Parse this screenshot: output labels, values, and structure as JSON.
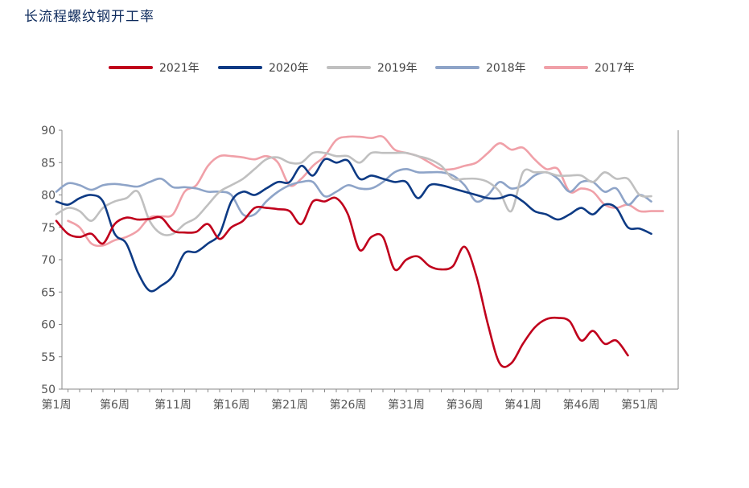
{
  "title": "长流程螺纹钢开工率",
  "chart_data": {
    "type": "line",
    "title": "长流程螺纹钢开工率",
    "xlabel": "",
    "ylabel": "",
    "ylim": [
      50,
      90
    ],
    "yticks": [
      50,
      55,
      60,
      65,
      70,
      75,
      80,
      85,
      90
    ],
    "xlim": [
      1,
      53
    ],
    "xticks": [
      1,
      6,
      11,
      16,
      21,
      26,
      31,
      36,
      41,
      46,
      51
    ],
    "xtick_labels": [
      "第1周",
      "第6周",
      "第11周",
      "第16周",
      "第21周",
      "第26周",
      "第31周",
      "第36周",
      "第41周",
      "第46周",
      "第51周"
    ],
    "grid": false,
    "legend_position": "top",
    "series": [
      {
        "name": "2021年",
        "color": "#c0001c",
        "x": [
          1,
          2,
          3,
          4,
          5,
          6,
          7,
          8,
          9,
          10,
          11,
          12,
          13,
          14,
          15,
          16,
          17,
          18,
          19,
          20,
          21,
          22,
          23,
          24,
          25,
          26,
          27,
          28,
          29,
          30,
          31,
          32,
          33,
          34,
          35,
          36,
          37,
          38,
          39,
          40,
          41,
          42,
          43,
          44,
          45,
          46,
          47,
          48,
          49,
          50
        ],
        "y": [
          76,
          74,
          73.5,
          74,
          72.5,
          75.5,
          76.5,
          76.2,
          76.3,
          76.5,
          74.5,
          74.2,
          74.3,
          75.5,
          73.2,
          75,
          76,
          78,
          78,
          77.8,
          77.5,
          75.5,
          79,
          79,
          79.5,
          77,
          71.5,
          73.5,
          73.5,
          68.5,
          70,
          70.5,
          69,
          68.5,
          69,
          72,
          67.5,
          60,
          54,
          54,
          57,
          59.5,
          60.8,
          61,
          60.5,
          57.5,
          59,
          57,
          57.5,
          55.2
        ]
      },
      {
        "name": "2020年",
        "color": "#0d3a84",
        "x": [
          1,
          2,
          3,
          4,
          5,
          6,
          7,
          8,
          9,
          10,
          11,
          12,
          13,
          14,
          15,
          16,
          17,
          18,
          19,
          20,
          21,
          22,
          23,
          24,
          25,
          26,
          27,
          28,
          29,
          30,
          31,
          32,
          33,
          34,
          35,
          36,
          37,
          38,
          39,
          40,
          41,
          42,
          43,
          44,
          45,
          46,
          47,
          48,
          49,
          50,
          51,
          52
        ],
        "y": [
          79,
          78.5,
          79.5,
          80,
          79,
          74,
          72.5,
          68,
          65.2,
          66,
          67.5,
          71,
          71.2,
          72.5,
          74,
          79,
          80.5,
          80,
          81,
          82,
          82,
          84.5,
          83,
          85.5,
          85,
          85.3,
          82.5,
          83,
          82.5,
          82,
          82,
          79.5,
          81.5,
          81.5,
          81,
          80.5,
          80,
          79.5,
          79.5,
          80,
          79,
          77.5,
          77,
          76.2,
          77,
          78,
          77,
          78.5,
          78,
          75,
          74.8,
          74
        ]
      },
      {
        "name": "2019年",
        "color": "#c0c0c0",
        "x": [
          1,
          2,
          3,
          4,
          5,
          6,
          7,
          8,
          9,
          10,
          11,
          12,
          13,
          14,
          15,
          16,
          17,
          18,
          19,
          20,
          21,
          22,
          23,
          24,
          25,
          26,
          27,
          28,
          29,
          30,
          31,
          32,
          33,
          34,
          35,
          36,
          37,
          38,
          39,
          40,
          41,
          42,
          43,
          44,
          45,
          46,
          47,
          48,
          49,
          50,
          51,
          52
        ],
        "y": [
          77,
          78,
          77.5,
          76,
          78,
          79,
          79.5,
          80.5,
          76,
          74,
          74,
          75.5,
          76.5,
          78.5,
          80.5,
          81.5,
          82.5,
          84,
          85.5,
          85.8,
          85,
          85,
          86.5,
          86.5,
          86,
          86,
          85,
          86.5,
          86.5,
          86.5,
          86.5,
          86,
          85.5,
          84.5,
          82.5,
          82.5,
          82.5,
          82,
          80.5,
          77.5,
          83.5,
          83.5,
          83.5,
          83,
          83,
          83,
          82,
          83.5,
          82.5,
          82.5,
          80,
          79.8
        ]
      },
      {
        "name": "2018年",
        "color": "#8ea4c8",
        "x": [
          1,
          2,
          3,
          4,
          5,
          6,
          7,
          8,
          9,
          10,
          11,
          12,
          13,
          14,
          15,
          16,
          17,
          18,
          19,
          20,
          21,
          22,
          23,
          24,
          25,
          26,
          27,
          28,
          29,
          30,
          31,
          32,
          33,
          34,
          35,
          36,
          37,
          38,
          39,
          40,
          41,
          42,
          43,
          44,
          45,
          46,
          47,
          48,
          49,
          50,
          51,
          52
        ],
        "y": [
          80.5,
          81.8,
          81.5,
          80.8,
          81.5,
          81.7,
          81.5,
          81.3,
          82,
          82.5,
          81.2,
          81.2,
          81,
          80.5,
          80.5,
          80,
          77,
          77,
          79,
          80.5,
          81.5,
          82,
          82,
          79.8,
          80.5,
          81.5,
          81,
          81,
          82,
          83.5,
          84,
          83.5,
          83.5,
          83.5,
          83,
          81.5,
          79,
          80,
          82,
          81,
          81.5,
          83,
          83.5,
          82.5,
          80.5,
          82,
          82,
          80.5,
          81,
          78.5,
          80,
          79
        ]
      },
      {
        "name": "2017年",
        "color": "#f0a0a8",
        "x": [
          2,
          3,
          4,
          5,
          6,
          7,
          8,
          9,
          10,
          11,
          12,
          13,
          14,
          15,
          16,
          17,
          18,
          19,
          20,
          21,
          22,
          23,
          24,
          25,
          26,
          27,
          28,
          29,
          30,
          31,
          32,
          33,
          34,
          35,
          36,
          37,
          38,
          39,
          40,
          41,
          42,
          43,
          44,
          45,
          46,
          47,
          48,
          49,
          50,
          51,
          52,
          53
        ],
        "y": [
          76,
          75,
          72.5,
          72.2,
          73,
          73.5,
          74.5,
          76.5,
          76.7,
          77,
          80.5,
          81.5,
          84.5,
          86,
          86,
          85.8,
          85.5,
          86,
          85,
          81.5,
          82.5,
          84.5,
          86,
          88.5,
          89,
          89,
          88.8,
          89,
          87,
          86.5,
          86,
          85,
          84,
          84,
          84.5,
          85,
          86.5,
          88,
          87,
          87.3,
          85.5,
          84,
          84,
          80.5,
          81,
          80.5,
          78.5,
          78,
          78.5,
          77.5,
          77.5,
          77.5
        ]
      }
    ]
  }
}
